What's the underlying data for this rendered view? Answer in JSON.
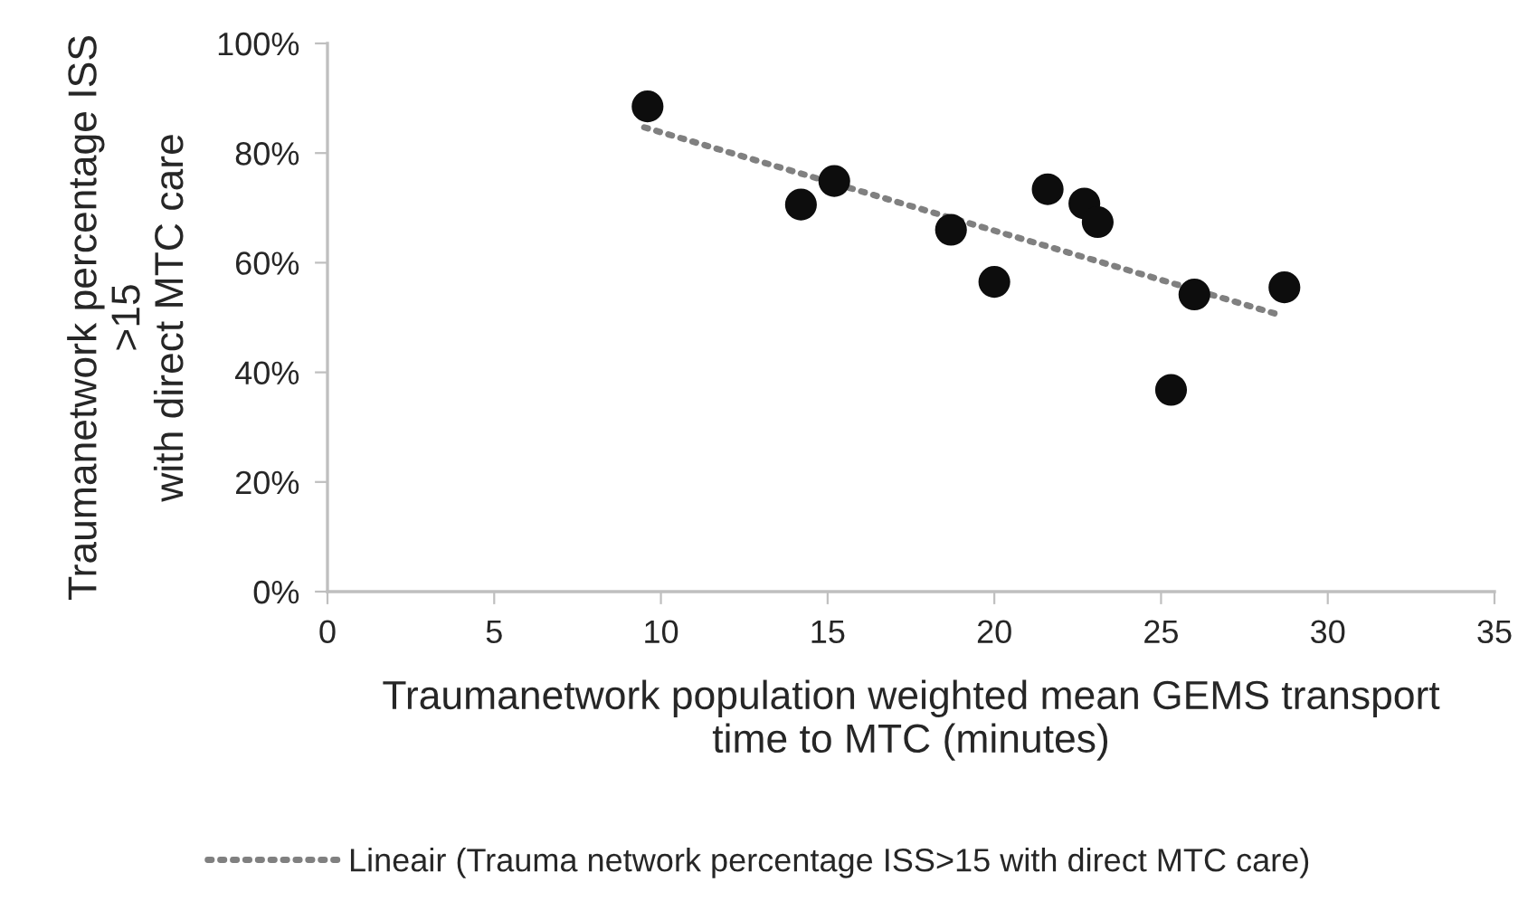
{
  "chart_data": {
    "type": "scatter",
    "xlabel": "Traumanetwork population weighted mean GEMS transport\ntime to MTC (minutes)",
    "ylabel": "Traumanetwork percentage ISS\n>15\nwith direct MTC care",
    "series": [
      {
        "color": "#0d0d0d",
        "marker": "circle",
        "x": [
          9.6,
          14.2,
          15.2,
          18.7,
          20.0,
          21.6,
          22.7,
          23.1,
          25.3,
          26.0,
          28.7
        ],
        "values": [
          88.5,
          70.6,
          74.9,
          66.0,
          56.5,
          73.4,
          70.8,
          67.4,
          36.8,
          54.2,
          55.5
        ]
      },
      {
        "type": "line",
        "name": "Lineair (Trauma network percentage ISS>15 with direct MTC care)",
        "color": "#808080",
        "line_style": "dotted",
        "marker": "none",
        "x": [
          9.5,
          28.6
        ],
        "values": [
          84.7,
          50.4
        ]
      }
    ],
    "xlim": [
      0,
      35
    ],
    "xticks": [
      0,
      5,
      10,
      15,
      20,
      25,
      30,
      35
    ],
    "ylim": [
      0,
      100
    ],
    "yticks": [
      {
        "value": 0,
        "label": "0%"
      },
      {
        "value": 20,
        "label": "20%"
      },
      {
        "value": 40,
        "label": "40%"
      },
      {
        "value": 60,
        "label": "60%"
      },
      {
        "value": 80,
        "label": "80%"
      },
      {
        "value": 100,
        "label": "100%"
      }
    ],
    "grid": false,
    "legend": "bottom"
  }
}
